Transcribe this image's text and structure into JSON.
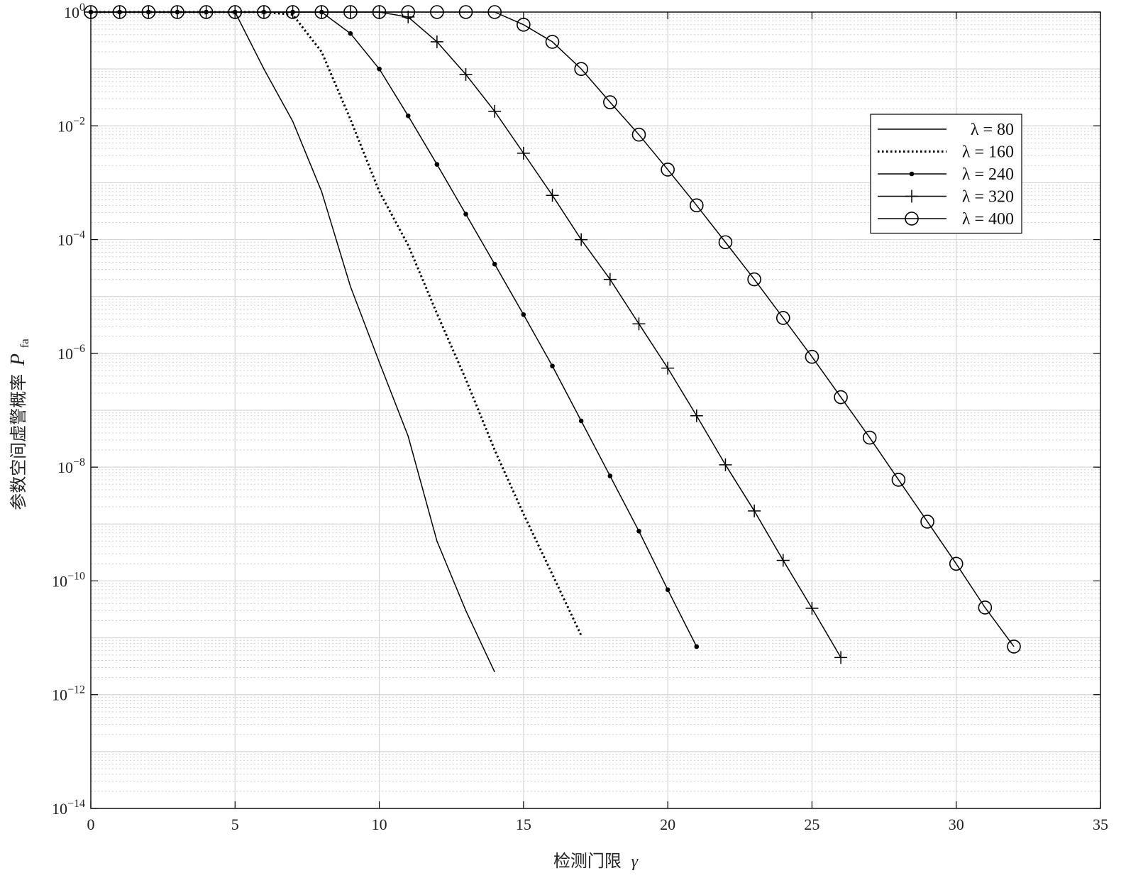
{
  "chart_data": {
    "type": "line",
    "xlabel": "检测门限",
    "xlabel_symbol": "γ",
    "ylabel": "参数空间虚警概率",
    "ylabel_symbol": "P",
    "ylabel_subscript": "fa",
    "xlim": [
      0,
      35
    ],
    "ylim": [
      1e-14,
      1
    ],
    "yscale": "log",
    "grid": true,
    "minor_grid": true,
    "legend_position": "top-right",
    "xticks": [
      0,
      5,
      10,
      15,
      20,
      25,
      30,
      35
    ],
    "yticks": [
      {
        "exp": "0",
        "value": 1
      },
      {
        "exp": "−2",
        "value": 0.01
      },
      {
        "exp": "−4",
        "value": 0.0001
      },
      {
        "exp": "−6",
        "value": 1e-06
      },
      {
        "exp": "−8",
        "value": 1e-08
      },
      {
        "exp": "−10",
        "value": 1e-10
      },
      {
        "exp": "−12",
        "value": 1e-12
      },
      {
        "exp": "−14",
        "value": 1e-14
      }
    ],
    "series": [
      {
        "name": "λ = 80",
        "marker": "none",
        "line": "solid",
        "x": [
          0,
          1,
          2,
          3,
          4,
          5,
          6,
          7,
          8,
          9,
          10,
          11,
          12,
          13,
          14
        ],
        "y": [
          1,
          1,
          1,
          1,
          1,
          1,
          0.1,
          0.012,
          0.0007,
          1.5e-05,
          7e-07,
          3.5e-08,
          5e-10,
          3e-11,
          2.5e-12
        ]
      },
      {
        "name": "λ = 160",
        "marker": "none",
        "line": "dotted",
        "x": [
          0,
          1,
          2,
          3,
          4,
          5,
          6,
          7,
          8,
          9,
          10,
          11,
          12,
          13,
          14,
          15,
          16,
          17
        ],
        "y": [
          1,
          1,
          1,
          1,
          1,
          1,
          1,
          0.9,
          0.2,
          0.013,
          0.0007,
          8e-05,
          5e-06,
          3.5e-07,
          2e-08,
          1.5e-09,
          1.3e-10,
          1.1e-11
        ]
      },
      {
        "name": "λ = 240",
        "marker": "dot",
        "line": "solid",
        "x": [
          0,
          1,
          2,
          3,
          4,
          5,
          6,
          7,
          8,
          9,
          10,
          11,
          12,
          13,
          14,
          15,
          16,
          17,
          18,
          19,
          20,
          21
        ],
        "y": [
          1,
          1,
          1,
          1,
          1,
          1,
          1,
          1,
          1,
          0.42,
          0.1,
          0.015,
          0.0021,
          0.00028,
          3.7e-05,
          4.8e-06,
          6e-07,
          6.5e-08,
          7e-09,
          7.5e-10,
          7e-11,
          7e-12
        ]
      },
      {
        "name": "λ = 320",
        "marker": "plus",
        "line": "solid",
        "x": [
          0,
          1,
          2,
          3,
          4,
          5,
          6,
          7,
          8,
          9,
          10,
          11,
          12,
          13,
          14,
          15,
          16,
          17,
          18,
          19,
          20,
          21,
          22,
          23,
          24,
          25,
          26
        ],
        "y": [
          1,
          1,
          1,
          1,
          1,
          1,
          1,
          1,
          1,
          1,
          1,
          0.82,
          0.3,
          0.08,
          0.018,
          0.0033,
          0.0006,
          0.0001,
          2e-05,
          3.3e-06,
          5.5e-07,
          8e-08,
          1.1e-08,
          1.7e-09,
          2.3e-10,
          3.3e-11,
          4.5e-12
        ]
      },
      {
        "name": "λ = 400",
        "marker": "circle",
        "line": "solid",
        "x": [
          0,
          1,
          2,
          3,
          4,
          5,
          6,
          7,
          8,
          9,
          10,
          11,
          12,
          13,
          14,
          15,
          16,
          17,
          18,
          19,
          20,
          21,
          22,
          23,
          24,
          25,
          26,
          27,
          28,
          29,
          30,
          31,
          32
        ],
        "y": [
          1,
          1,
          1,
          1,
          1,
          1,
          1,
          1,
          1,
          1,
          1,
          1,
          1,
          1,
          1,
          0.6,
          0.3,
          0.1,
          0.026,
          0.007,
          0.0017,
          0.0004,
          9e-05,
          2e-05,
          4.2e-06,
          8.7e-07,
          1.7e-07,
          3.3e-08,
          6e-09,
          1.1e-09,
          2e-10,
          3.4e-11,
          7e-12
        ]
      }
    ]
  }
}
